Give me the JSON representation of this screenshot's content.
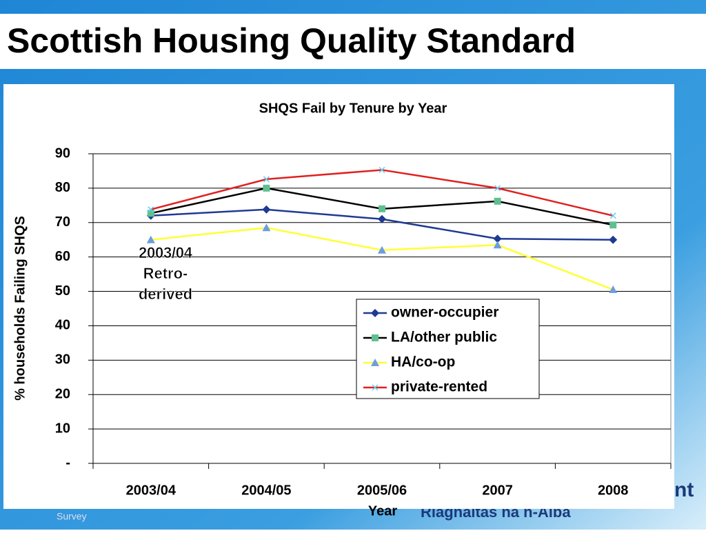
{
  "page_title": "Scottish Housing Quality Standard",
  "footer": {
    "survey": "Survey",
    "gaelic": "Riaghaltas na h-Alba",
    "partial": "nt"
  },
  "chart_data": {
    "type": "line",
    "title": "SHQS Fail by Tenure by Year",
    "x_label": "Year",
    "y_label": "% households Failing SHQS",
    "categories": [
      "2003/04",
      "2004/05",
      "2005/06",
      "2007",
      "2008"
    ],
    "series": [
      {
        "name": "owner-occupier",
        "color": "#1f3a93",
        "marker": "diamond",
        "marker_color": "#1f3a93",
        "values": [
          72,
          73.8,
          71,
          65.3,
          65
        ]
      },
      {
        "name": "LA/other public",
        "color": "#000000",
        "marker": "square",
        "marker_color": "#5fc08f",
        "values": [
          72.7,
          80,
          74,
          76.2,
          69.3
        ]
      },
      {
        "name": "HA/co-op",
        "color": "#ffff33",
        "marker": "triangle",
        "marker_color": "#6f9ce0",
        "values": [
          65,
          68.5,
          62,
          63.5,
          50.5
        ]
      },
      {
        "name": "private-rented",
        "color": "#e02020",
        "marker": "cross",
        "marker_color": "#66ccee",
        "values": [
          73.8,
          82.6,
          85.3,
          80,
          72
        ]
      }
    ],
    "ylim": [
      0,
      90
    ],
    "yticks": [
      {
        "value": 0,
        "label": "-"
      },
      10,
      20,
      30,
      40,
      50,
      60,
      70,
      80,
      90
    ],
    "grid": true,
    "annotation": [
      "2003/04",
      "Retro-",
      "derived"
    ]
  }
}
